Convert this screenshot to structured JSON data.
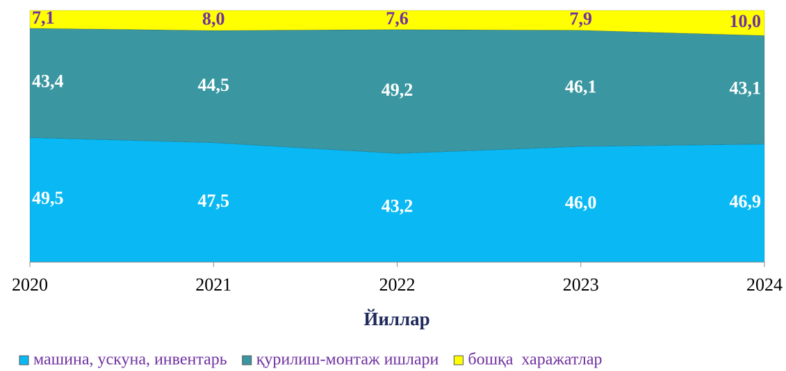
{
  "chart_data": {
    "type": "stacked_area",
    "categories": [
      "2020",
      "2021",
      "2022",
      "2023",
      "2024"
    ],
    "x_label": "Йиллар",
    "ylim": [
      0,
      100
    ],
    "legend": "bottom",
    "series": [
      {
        "name": "машина, ускуна, инвентарь",
        "color": "#0ab9f3",
        "label_color": "#ffffff",
        "values": [
          49.5,
          47.5,
          43.2,
          46.0,
          46.9
        ],
        "value_labels": [
          "49,5",
          "47,5",
          "43,2",
          "46,0",
          "46,9"
        ]
      },
      {
        "name": "қурилиш-монтаж ишлари",
        "color": "#3a97a2",
        "label_color": "#ffffff",
        "values": [
          43.4,
          44.5,
          49.2,
          46.1,
          43.1
        ],
        "value_labels": [
          "43,4",
          "44,5",
          "49,2",
          "46,1",
          "43,1"
        ]
      },
      {
        "name": "бошқа  харажатлар",
        "color": "#ffff00",
        "label_color": "#7030a0",
        "values": [
          7.1,
          8.0,
          7.6,
          7.9,
          10.0
        ],
        "value_labels": [
          "7,1",
          "8,0",
          "7,6",
          "7,9",
          "10,0"
        ]
      }
    ]
  }
}
